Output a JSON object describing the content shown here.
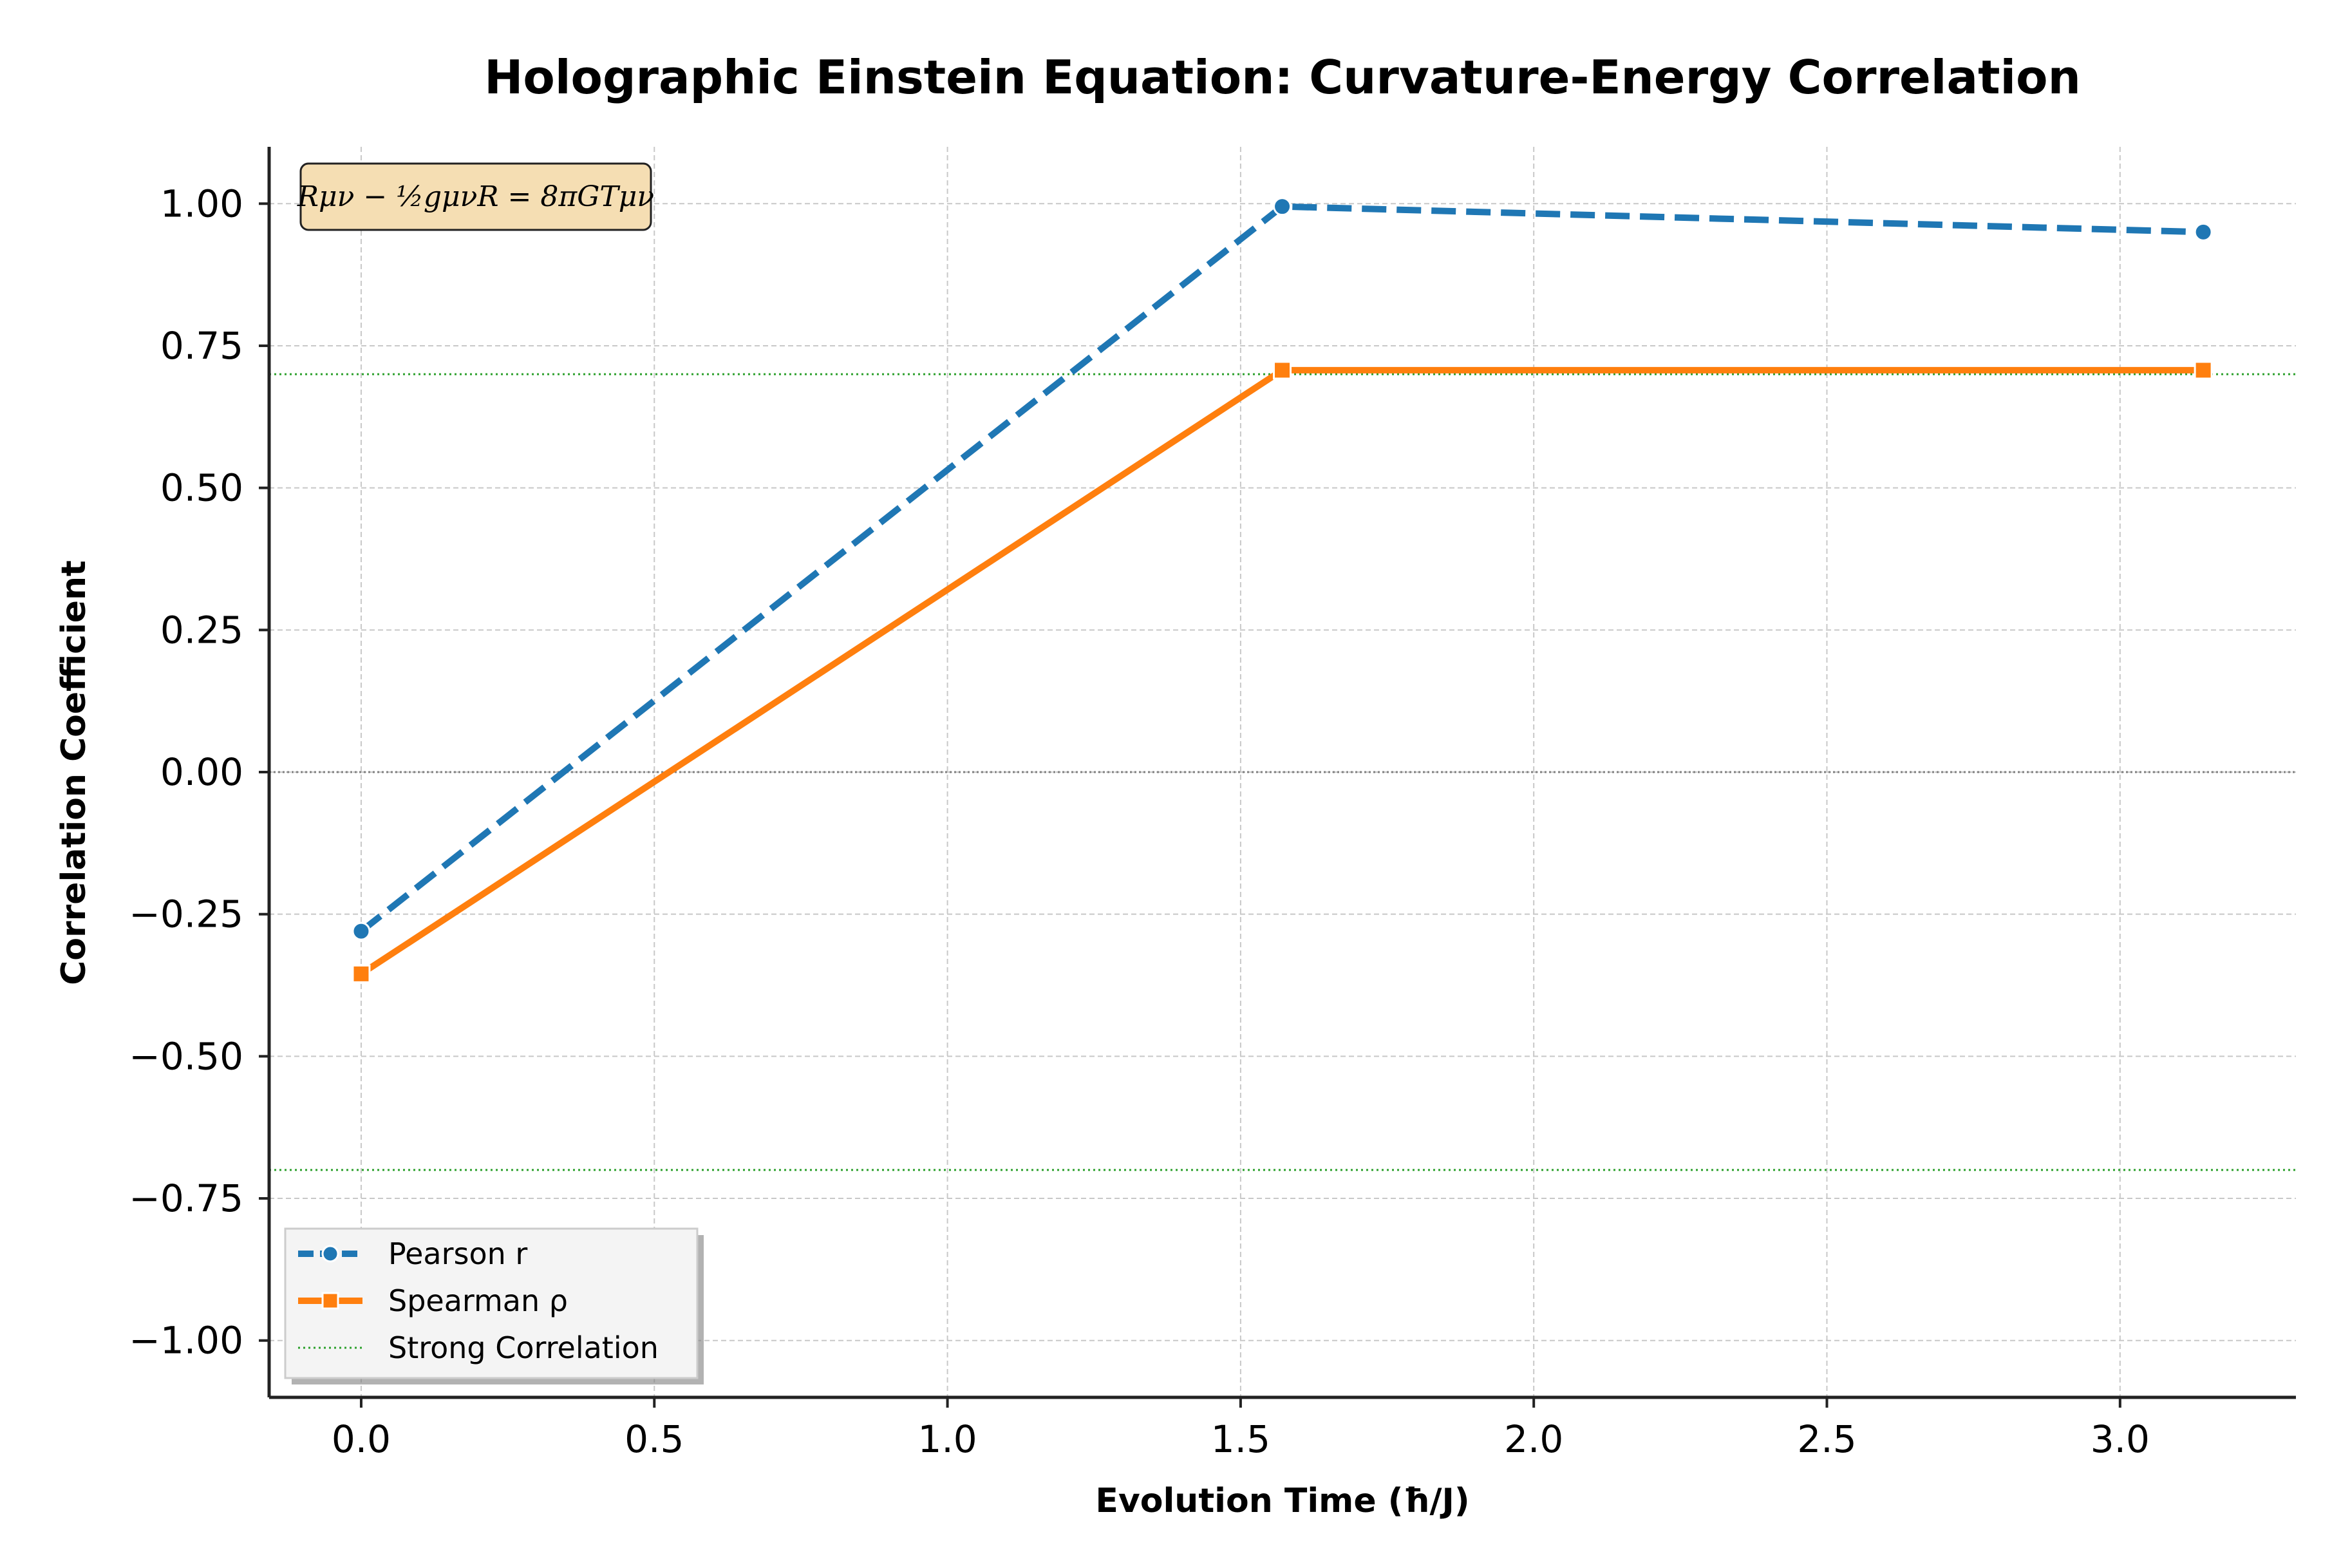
{
  "chart_data": {
    "type": "line",
    "title": "Holographic Einstein Equation: Curvature-Energy Correlation",
    "xlabel": "Evolution Time (ħ/J)",
    "ylabel": "Correlation Coefficient",
    "xlim": [
      -0.157,
      3.3
    ],
    "ylim": [
      -1.1,
      1.1
    ],
    "xticks": [
      0.0,
      0.5,
      1.0,
      1.5,
      2.0,
      2.5,
      3.0
    ],
    "xtick_labels": [
      "0.0",
      "0.5",
      "1.0",
      "1.5",
      "2.0",
      "2.5",
      "3.0"
    ],
    "yticks": [
      1.0,
      0.75,
      0.5,
      0.25,
      0.0,
      -0.25,
      -0.5,
      -0.75,
      -1.0
    ],
    "ytick_labels": [
      "1.00",
      "0.75",
      "0.50",
      "0.25",
      "0.00",
      "−0.25",
      "−0.50",
      "−0.75",
      "−1.00"
    ],
    "grid": true,
    "legend_position": "lower-left",
    "annotation": "Rμν − ½gμνR = 8πGTμν",
    "x": [
      0.0,
      1.571,
      3.142
    ],
    "series": [
      {
        "name": "Pearson r",
        "values": [
          -0.28,
          0.995,
          0.95
        ],
        "color": "#1f77b4",
        "style": "dashed",
        "marker": "circle"
      },
      {
        "name": "Spearman ρ",
        "values": [
          -0.355,
          0.707,
          0.707
        ],
        "color": "#ff7f0e",
        "style": "solid",
        "marker": "square"
      }
    ],
    "reference_lines": [
      {
        "name": "Strong Correlation",
        "y": [
          0.7,
          -0.7
        ],
        "color": "#2ca02c",
        "style": "dotted"
      },
      {
        "name": "",
        "y": [
          0.0
        ],
        "color": "#808080",
        "style": "dotted"
      }
    ]
  }
}
